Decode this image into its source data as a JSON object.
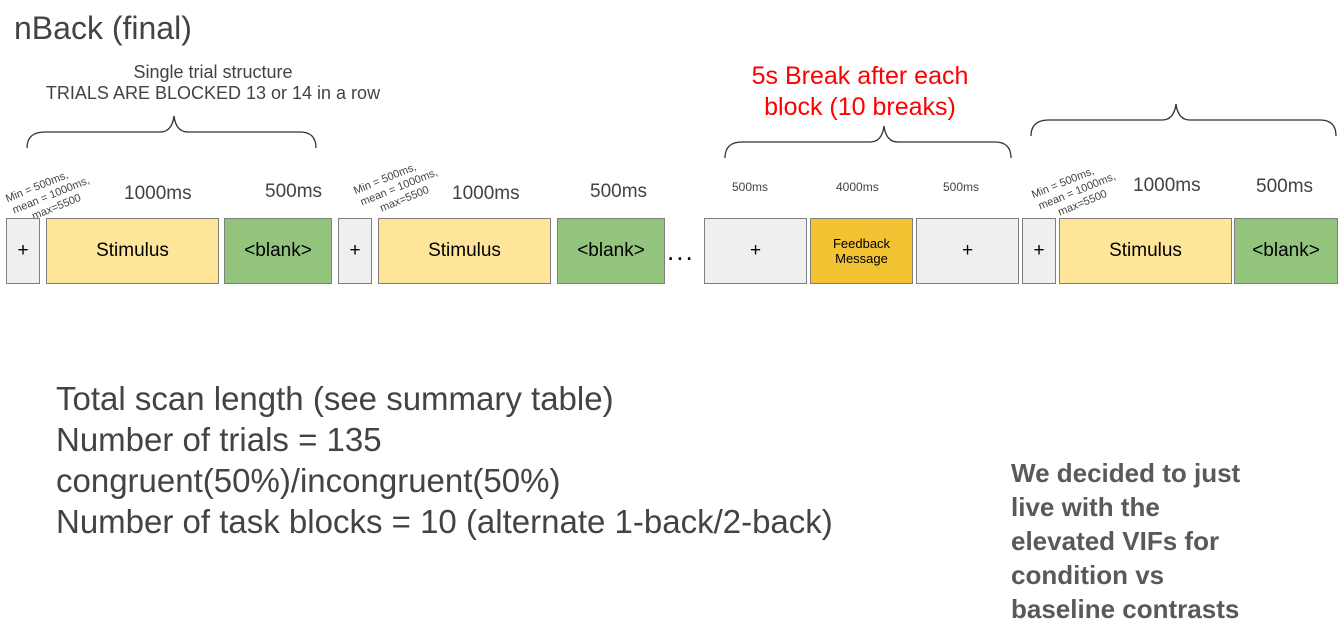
{
  "title": "nBack (final)",
  "trial_caption_line1": "Single trial structure",
  "trial_caption_line2": "TRIALS ARE BLOCKED 13 or 14 in a row",
  "break_caption_line1": "5s Break after each",
  "break_caption_line2": "block (10 breaks)",
  "jitter_label": [
    "Min = 500ms,",
    "mean = 1000ms,",
    "max=5500"
  ],
  "durations": {
    "stim": "1000ms",
    "blank": "500ms",
    "break_fix": "500ms",
    "feedback": "4000ms"
  },
  "boxes": {
    "fixation": "+",
    "stimulus": "Stimulus",
    "blank": "<blank>",
    "feedback": [
      "Feedback",
      "Message"
    ]
  },
  "ellipsis": "...",
  "summary": [
    "Total scan length (see summary table)",
    "Number of trials = 135",
    "congruent(50%)/incongruent(50%)",
    "Number of task blocks = 10 (alternate 1-back/2-back)"
  ],
  "note": [
    "We decided to just",
    "live with the",
    "elevated VIFs for",
    "condition vs",
    "baseline contrasts"
  ],
  "colors": {
    "stimulus": "#ffe599",
    "blank": "#93c47d",
    "fixation": "#efefef",
    "feedback": "#f1c232",
    "break_text": "#ff0000"
  }
}
